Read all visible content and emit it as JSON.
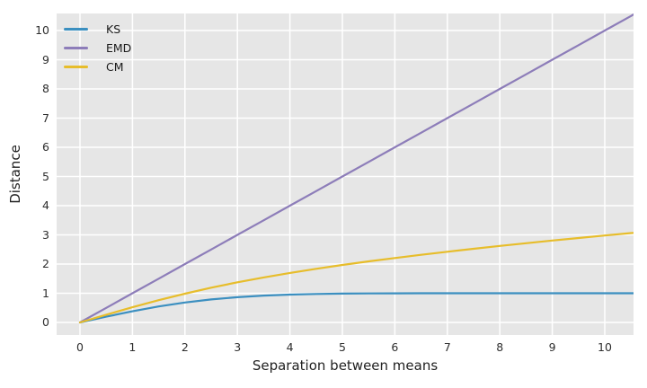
{
  "chart_data": {
    "type": "line",
    "title": "",
    "xlabel": "Separation between means",
    "ylabel": "Distance",
    "xlim": [
      -0.45,
      10.55
    ],
    "ylim": [
      -0.43,
      10.58
    ],
    "grid": true,
    "grid_color": "#ffffff",
    "panel_background": "#e6e6e6",
    "figure_background": "#ffffff",
    "legend_position": "upper-left",
    "legend_frame": false,
    "xticks": [
      0,
      1,
      2,
      3,
      4,
      5,
      6,
      7,
      8,
      9,
      10
    ],
    "yticks": [
      0,
      1,
      2,
      3,
      4,
      5,
      6,
      7,
      8,
      9,
      10
    ],
    "x": [
      0,
      0.5,
      1,
      1.5,
      2,
      2.5,
      3,
      3.5,
      4,
      4.5,
      5,
      5.5,
      6,
      6.5,
      7,
      7.5,
      8,
      8.5,
      9,
      9.5,
      10,
      10.5,
      10.55
    ],
    "series": [
      {
        "name": "KS",
        "color": "#3b8fc0",
        "values": [
          0,
          0.197,
          0.383,
          0.547,
          0.683,
          0.789,
          0.866,
          0.92,
          0.954,
          0.976,
          0.988,
          0.994,
          0.997,
          0.999,
          0.9995,
          0.9998,
          0.9999,
          1,
          1,
          1,
          1,
          1,
          1
        ]
      },
      {
        "name": "EMD",
        "color": "#8d7db9",
        "values": [
          0,
          0.5,
          1,
          1.5,
          2,
          2.5,
          3,
          3.5,
          4,
          4.5,
          5,
          5.5,
          6,
          6.5,
          7,
          7.5,
          8,
          8.5,
          9,
          9.5,
          10,
          10.5,
          10.55
        ]
      },
      {
        "name": "CM",
        "color": "#e7bd2b",
        "values": [
          0,
          0.264,
          0.52,
          0.762,
          0.986,
          1.19,
          1.374,
          1.542,
          1.695,
          1.836,
          1.968,
          2.091,
          2.207,
          2.318,
          2.423,
          2.524,
          2.621,
          2.715,
          2.806,
          2.893,
          2.978,
          3.061,
          3.069
        ]
      }
    ]
  }
}
